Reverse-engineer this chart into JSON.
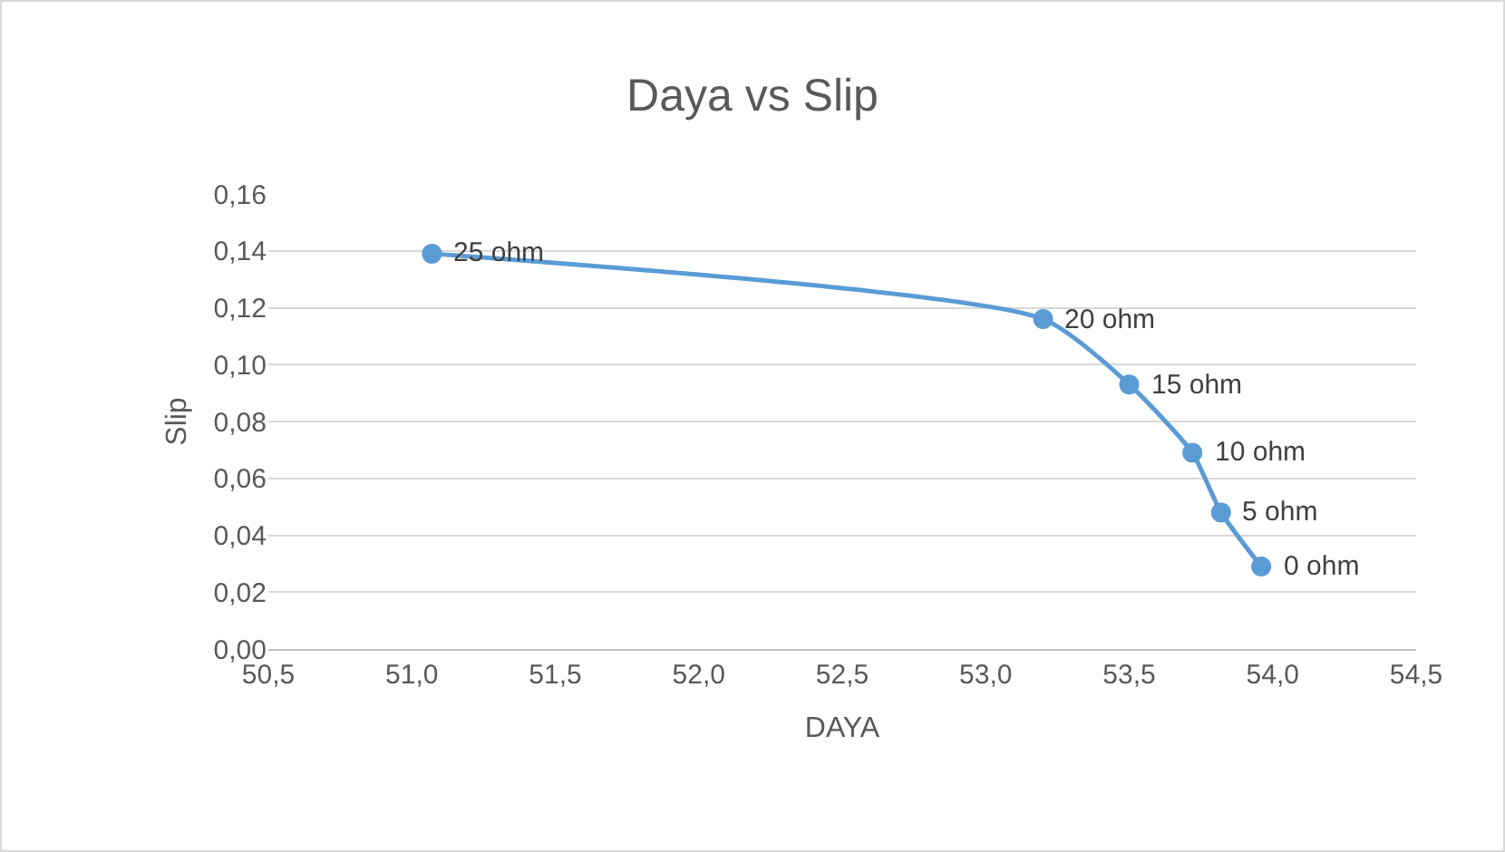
{
  "chart_data": {
    "type": "line",
    "title": "Daya vs Slip",
    "xlabel": "DAYA",
    "ylabel": "Slip",
    "x": [
      51.07,
      53.2,
      53.5,
      53.72,
      53.82,
      53.96
    ],
    "series": [
      {
        "color": "#5b9bd5",
        "values": [
          0.139,
          0.116,
          0.093,
          0.069,
          0.048,
          0.029
        ]
      }
    ],
    "xlim": [
      50.5,
      54.5
    ],
    "xticks": [
      {
        "value": 50.5,
        "label": "50,5"
      },
      {
        "value": 51,
        "label": "51,0"
      },
      {
        "value": 51.5,
        "label": "51,5"
      },
      {
        "value": 52,
        "label": "52,0"
      },
      {
        "value": 52.5,
        "label": "52,5"
      },
      {
        "value": 53,
        "label": "53,0"
      },
      {
        "value": 53.5,
        "label": "53,5"
      },
      {
        "value": 54,
        "label": "54,0"
      },
      {
        "value": 54.5,
        "label": "54,5"
      }
    ],
    "ylim": [
      0,
      0.16
    ],
    "yticks": [
      {
        "value": 0,
        "label": "0,00"
      },
      {
        "value": 0.02,
        "label": "0,02"
      },
      {
        "value": 0.04,
        "label": "0,04"
      },
      {
        "value": 0.06,
        "label": "0,06"
      },
      {
        "value": 0.08,
        "label": "0,08"
      },
      {
        "value": 0.1,
        "label": "0,10"
      },
      {
        "value": 0.12,
        "label": "0,12"
      },
      {
        "value": 0.14,
        "label": "0,14"
      },
      {
        "value": 0.16,
        "label": "0,16"
      }
    ],
    "grid": "y",
    "marker": "circle",
    "line_style": "solid",
    "legend": false,
    "annotations": [
      {
        "text": "25 ohm",
        "x": 51.07,
        "y": 0.139
      },
      {
        "text": "20 ohm",
        "x": 53.2,
        "y": 0.116
      },
      {
        "text": "15 ohm",
        "x": 53.5,
        "y": 0.093
      },
      {
        "text": "10 ohm",
        "x": 53.72,
        "y": 0.069
      },
      {
        "text": "5 ohm",
        "x": 53.82,
        "y": 0.048
      },
      {
        "text": "0 ohm",
        "x": 53.96,
        "y": 0.029
      }
    ]
  }
}
